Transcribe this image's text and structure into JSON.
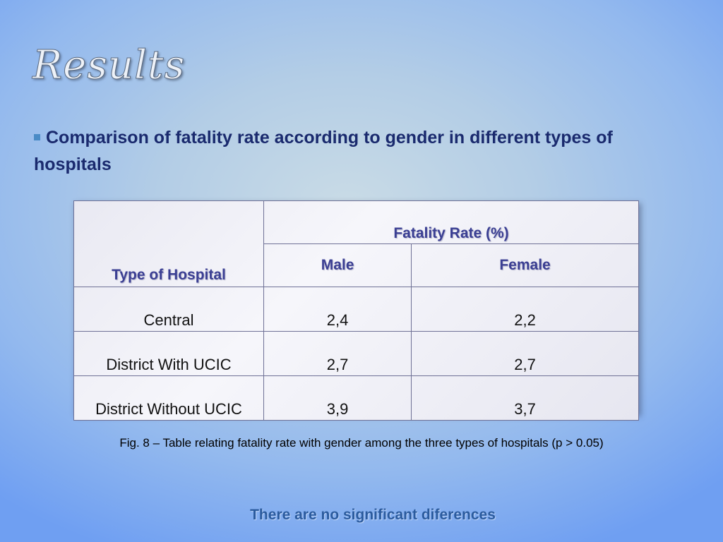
{
  "slide": {
    "title": "Results",
    "bullet": "Comparison of fatality rate according to gender in different types of hospitals",
    "caption": "Fig. 8 – Table relating fatality rate with gender among the three types of hospitals (p > 0.05)",
    "conclusion": "There are no significant diferences"
  },
  "table": {
    "type_header": "Type of Hospital",
    "group_header": "Fatality Rate (%)",
    "male_header": "Male",
    "female_header": "Female",
    "rows": [
      {
        "type": "Central",
        "male": "2,4",
        "female": "2,2"
      },
      {
        "type": "District With UCIC",
        "male": "2,7",
        "female": "2,7"
      },
      {
        "type": "District Without UCIC",
        "male": "3,9",
        "female": "3,7"
      }
    ]
  },
  "colors": {
    "title_text": "#eef2f8",
    "bullet_text": "#1a2a6e",
    "header_text": "#3b3f93",
    "conclusion_text": "#2b5b9e",
    "bullet_marker": "#4a8bc6"
  }
}
